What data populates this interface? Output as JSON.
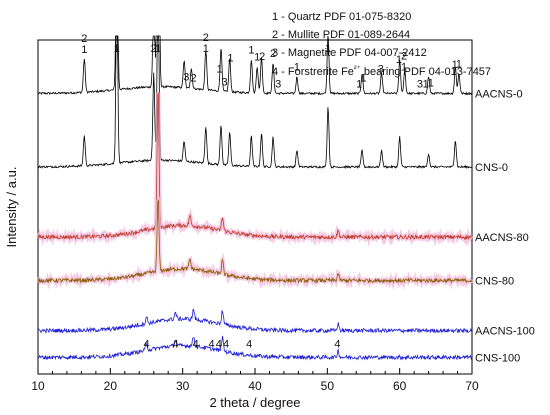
{
  "chart_data": {
    "type": "line",
    "xlabel": "2 theta / degree",
    "ylabel": "Intensity / a.u.",
    "xlim": [
      10,
      70
    ],
    "xticks": [
      10,
      20,
      30,
      40,
      50,
      60,
      70
    ],
    "yticks_shown": false,
    "grid": false,
    "legend": {
      "placement": "top-right",
      "entries": [
        "1 - Quartz PDF 01-075-8320",
        "2 - Mullite PDF 01-089-2644",
        "3 - Magnetite PDF 04-007-2412",
        "4 - Forstrerite Fe²⁺ bearing PDF  04-013-7457"
      ]
    },
    "series": [
      {
        "name": "AACNS-0",
        "color": "#000000",
        "baseline": 0.84,
        "peaks": [
          [
            16.4,
            0.1
          ],
          [
            20.9,
            0.55
          ],
          [
            26.0,
            0.28
          ],
          [
            26.6,
            2.2
          ],
          [
            30.2,
            0.08
          ],
          [
            31.2,
            0.06
          ],
          [
            33.2,
            0.12
          ],
          [
            35.3,
            0.13
          ],
          [
            36.5,
            0.1
          ],
          [
            39.5,
            0.1
          ],
          [
            40.3,
            0.08
          ],
          [
            40.9,
            0.11
          ],
          [
            42.5,
            0.09
          ],
          [
            45.8,
            0.05
          ],
          [
            50.1,
            0.18
          ],
          [
            54.8,
            0.06
          ],
          [
            57.5,
            0.06
          ],
          [
            60.0,
            0.1
          ],
          [
            60.7,
            0.07
          ],
          [
            64.0,
            0.05
          ],
          [
            67.7,
            0.08
          ],
          [
            68.2,
            0.06
          ]
        ]
      },
      {
        "name": "CNS-0",
        "color": "#000000",
        "baseline": 0.62,
        "peaks": [
          [
            16.4,
            0.09
          ],
          [
            20.9,
            0.52
          ],
          [
            26.0,
            0.26
          ],
          [
            26.6,
            0.55
          ],
          [
            30.2,
            0.06
          ],
          [
            33.2,
            0.11
          ],
          [
            35.3,
            0.12
          ],
          [
            36.5,
            0.1
          ],
          [
            39.5,
            0.09
          ],
          [
            40.9,
            0.1
          ],
          [
            42.5,
            0.09
          ],
          [
            45.8,
            0.05
          ],
          [
            50.1,
            0.18
          ],
          [
            54.8,
            0.05
          ],
          [
            57.5,
            0.05
          ],
          [
            60.0,
            0.09
          ],
          [
            64.0,
            0.04
          ],
          [
            67.7,
            0.08
          ]
        ]
      },
      {
        "name": "AACNS-80",
        "color": "#c0392b",
        "baseline": 0.41,
        "peaks": [
          [
            26.6,
            0.42
          ],
          [
            31.0,
            0.03
          ],
          [
            35.5,
            0.04
          ],
          [
            51.5,
            0.02
          ]
        ]
      },
      {
        "name": "CNS-80",
        "color": "#8a5a00",
        "baseline": 0.28,
        "peaks": [
          [
            26.6,
            0.22
          ],
          [
            31.0,
            0.03
          ],
          [
            35.5,
            0.04
          ],
          [
            51.5,
            0.02
          ]
        ]
      },
      {
        "name": "AACNS-100",
        "color": "#1a1ad6",
        "baseline": 0.13,
        "peaks": [
          [
            25.0,
            0.02
          ],
          [
            29.0,
            0.02
          ],
          [
            31.5,
            0.03
          ],
          [
            35.5,
            0.04
          ],
          [
            51.5,
            0.02
          ]
        ]
      },
      {
        "name": "CNS-100",
        "color": "#1a1ad6",
        "baseline": 0.05,
        "peaks": [
          [
            25.0,
            0.02
          ],
          [
            29.0,
            0.02
          ],
          [
            31.5,
            0.03
          ],
          [
            35.5,
            0.04
          ],
          [
            51.5,
            0.02
          ]
        ]
      }
    ],
    "annotations": [
      {
        "x": 16.4,
        "texts": [
          "2",
          "1"
        ]
      },
      {
        "x": 20.9,
        "texts": [
          "1"
        ]
      },
      {
        "x": 26.0,
        "texts": [
          "2"
        ]
      },
      {
        "x": 26.6,
        "texts": [
          "1"
        ]
      },
      {
        "x": 30.5,
        "texts": [
          "3"
        ]
      },
      {
        "x": 31.5,
        "texts": [
          "2"
        ]
      },
      {
        "x": 33.2,
        "texts": [
          "2",
          "1"
        ]
      },
      {
        "x": 35.1,
        "texts": [
          "1"
        ]
      },
      {
        "x": 35.8,
        "texts": [
          "3"
        ]
      },
      {
        "x": 36.6,
        "texts": [
          "1"
        ]
      },
      {
        "x": 39.5,
        "texts": [
          "1"
        ]
      },
      {
        "x": 40.3,
        "texts": [
          "1"
        ]
      },
      {
        "x": 41.0,
        "texts": [
          "2"
        ]
      },
      {
        "x": 42.5,
        "texts": [
          "2"
        ]
      },
      {
        "x": 43.2,
        "texts": [
          "3"
        ]
      },
      {
        "x": 45.8,
        "texts": [
          "1"
        ]
      },
      {
        "x": 50.1,
        "texts": [
          "1"
        ]
      },
      {
        "x": 54.4,
        "texts": [
          "1"
        ]
      },
      {
        "x": 55.0,
        "texts": [
          "1"
        ]
      },
      {
        "x": 57.4,
        "texts": [
          "3"
        ]
      },
      {
        "x": 59.9,
        "texts": [
          "1"
        ]
      },
      {
        "x": 60.6,
        "texts": [
          "2",
          "1"
        ]
      },
      {
        "x": 62.8,
        "texts": [
          "3"
        ]
      },
      {
        "x": 63.6,
        "texts": [
          "1"
        ]
      },
      {
        "x": 64.3,
        "texts": [
          "1"
        ]
      },
      {
        "x": 67.6,
        "texts": [
          "1"
        ]
      },
      {
        "x": 68.2,
        "texts": [
          "1"
        ]
      },
      {
        "x": 25.0,
        "texts": [
          "4"
        ]
      },
      {
        "x": 29.0,
        "texts": [
          "4"
        ]
      },
      {
        "x": 31.8,
        "texts": [
          "4"
        ]
      },
      {
        "x": 34.0,
        "texts": [
          "4"
        ]
      },
      {
        "x": 35.0,
        "texts": [
          "4"
        ]
      },
      {
        "x": 36.0,
        "texts": [
          "4"
        ]
      },
      {
        "x": 39.2,
        "texts": [
          "4"
        ]
      },
      {
        "x": 51.4,
        "texts": [
          "4"
        ]
      }
    ]
  }
}
